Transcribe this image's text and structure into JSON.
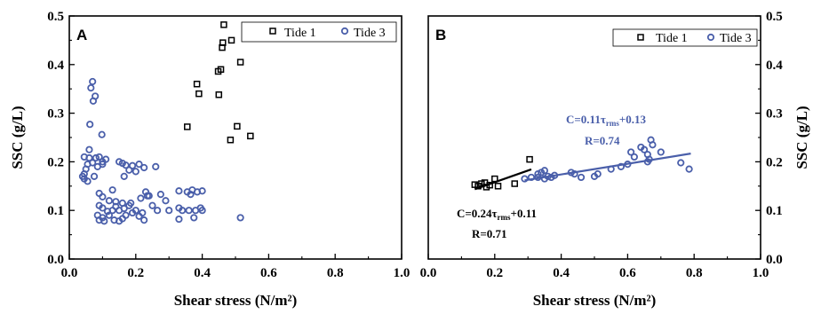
{
  "chart_data": [
    {
      "panel": "A",
      "type": "scatter",
      "xlabel": "Shear stress (N/m²)",
      "ylabel": "SSC (g/L)",
      "xlim": [
        0.0,
        1.0
      ],
      "ylim": [
        0.0,
        0.5
      ],
      "xticks": [
        "0.0",
        "0.2",
        "0.4",
        "0.6",
        "0.8",
        "1.0"
      ],
      "yticks": [
        "0.0",
        "0.1",
        "0.2",
        "0.3",
        "0.4",
        "0.5"
      ],
      "legend_position": "top-right",
      "series": [
        {
          "name": "Tide 1",
          "marker": "square",
          "color": "#000000",
          "points": [
            [
              0.465,
              0.482
            ],
            [
              0.488,
              0.45
            ],
            [
              0.462,
              0.445
            ],
            [
              0.46,
              0.435
            ],
            [
              0.456,
              0.39
            ],
            [
              0.448,
              0.386
            ],
            [
              0.515,
              0.405
            ],
            [
              0.384,
              0.36
            ],
            [
              0.39,
              0.34
            ],
            [
              0.45,
              0.338
            ],
            [
              0.355,
              0.272
            ],
            [
              0.505,
              0.273
            ],
            [
              0.545,
              0.253
            ],
            [
              0.485,
              0.245
            ]
          ]
        },
        {
          "name": "Tide 3",
          "marker": "circle",
          "color": "#4a5faa",
          "points": [
            [
              0.07,
              0.365
            ],
            [
              0.065,
              0.352
            ],
            [
              0.078,
              0.335
            ],
            [
              0.072,
              0.325
            ],
            [
              0.062,
              0.277
            ],
            [
              0.098,
              0.256
            ],
            [
              0.06,
              0.225
            ],
            [
              0.045,
              0.21
            ],
            [
              0.06,
              0.208
            ],
            [
              0.08,
              0.208
            ],
            [
              0.055,
              0.195
            ],
            [
              0.07,
              0.198
            ],
            [
              0.09,
              0.21
            ],
            [
              0.1,
              0.2
            ],
            [
              0.11,
              0.205
            ],
            [
              0.085,
              0.19
            ],
            [
              0.05,
              0.185
            ],
            [
              0.045,
              0.175
            ],
            [
              0.04,
              0.17
            ],
            [
              0.045,
              0.165
            ],
            [
              0.075,
              0.17
            ],
            [
              0.055,
              0.16
            ],
            [
              0.1,
              0.195
            ],
            [
              0.15,
              0.2
            ],
            [
              0.16,
              0.197
            ],
            [
              0.17,
              0.193
            ],
            [
              0.19,
              0.192
            ],
            [
              0.21,
              0.195
            ],
            [
              0.225,
              0.188
            ],
            [
              0.26,
              0.19
            ],
            [
              0.18,
              0.183
            ],
            [
              0.2,
              0.18
            ],
            [
              0.165,
              0.17
            ],
            [
              0.09,
              0.135
            ],
            [
              0.1,
              0.128
            ],
            [
              0.13,
              0.142
            ],
            [
              0.12,
              0.12
            ],
            [
              0.14,
              0.118
            ],
            [
              0.16,
              0.115
            ],
            [
              0.185,
              0.115
            ],
            [
              0.215,
              0.125
            ],
            [
              0.235,
              0.13
            ],
            [
              0.23,
              0.138
            ],
            [
              0.24,
              0.13
            ],
            [
              0.275,
              0.133
            ],
            [
              0.29,
              0.12
            ],
            [
              0.33,
              0.14
            ],
            [
              0.355,
              0.138
            ],
            [
              0.365,
              0.133
            ],
            [
              0.37,
              0.142
            ],
            [
              0.385,
              0.138
            ],
            [
              0.4,
              0.14
            ],
            [
              0.09,
              0.11
            ],
            [
              0.1,
              0.105
            ],
            [
              0.115,
              0.098
            ],
            [
              0.13,
              0.1
            ],
            [
              0.14,
              0.108
            ],
            [
              0.15,
              0.1
            ],
            [
              0.165,
              0.104
            ],
            [
              0.18,
              0.11
            ],
            [
              0.2,
              0.1
            ],
            [
              0.22,
              0.095
            ],
            [
              0.25,
              0.11
            ],
            [
              0.265,
              0.1
            ],
            [
              0.3,
              0.1
            ],
            [
              0.33,
              0.105
            ],
            [
              0.34,
              0.1
            ],
            [
              0.36,
              0.1
            ],
            [
              0.38,
              0.1
            ],
            [
              0.395,
              0.105
            ],
            [
              0.4,
              0.1
            ],
            [
              0.085,
              0.09
            ],
            [
              0.09,
              0.08
            ],
            [
              0.1,
              0.085
            ],
            [
              0.12,
              0.09
            ],
            [
              0.135,
              0.08
            ],
            [
              0.15,
              0.078
            ],
            [
              0.17,
              0.09
            ],
            [
              0.19,
              0.095
            ],
            [
              0.21,
              0.088
            ],
            [
              0.225,
              0.08
            ],
            [
              0.33,
              0.082
            ],
            [
              0.375,
              0.085
            ],
            [
              0.515,
              0.085
            ],
            [
              0.105,
              0.078
            ],
            [
              0.16,
              0.083
            ]
          ]
        }
      ]
    },
    {
      "panel": "B",
      "type": "scatter",
      "xlabel": "Shear stress (N/m²)",
      "ylabel": "SSC (g/L)",
      "xlim": [
        0.0,
        1.0
      ],
      "ylim": [
        0.0,
        0.5
      ],
      "xticks": [
        "0.0",
        "0.2",
        "0.4",
        "0.6",
        "0.8",
        "1.0"
      ],
      "yticks": [
        "0.0",
        "0.1",
        "0.2",
        "0.3",
        "0.4",
        "0.5"
      ],
      "legend_position": "top-right",
      "series": [
        {
          "name": "Tide 1",
          "marker": "square",
          "color": "#000000",
          "points": [
            [
              0.14,
              0.153
            ],
            [
              0.15,
              0.15
            ],
            [
              0.16,
              0.155
            ],
            [
              0.17,
              0.157
            ],
            [
              0.175,
              0.148
            ],
            [
              0.185,
              0.152
            ],
            [
              0.2,
              0.165
            ],
            [
              0.21,
              0.15
            ],
            [
              0.26,
              0.155
            ],
            [
              0.305,
              0.205
            ]
          ],
          "fit": {
            "x": [
              0.14,
              0.31
            ],
            "equation": "C=0.24τ",
            "equation_sub": "rms",
            "equation_tail": "+0.11",
            "r_text": "R=0.71",
            "slope": 0.24,
            "intercept": 0.11
          }
        },
        {
          "name": "Tide 3",
          "marker": "circle",
          "color": "#4a5faa",
          "points": [
            [
              0.29,
              0.165
            ],
            [
              0.31,
              0.168
            ],
            [
              0.33,
              0.175
            ],
            [
              0.34,
              0.178
            ],
            [
              0.35,
              0.165
            ],
            [
              0.36,
              0.17
            ],
            [
              0.37,
              0.168
            ],
            [
              0.38,
              0.172
            ],
            [
              0.33,
              0.168
            ],
            [
              0.35,
              0.182
            ],
            [
              0.43,
              0.178
            ],
            [
              0.44,
              0.175
            ],
            [
              0.46,
              0.168
            ],
            [
              0.5,
              0.17
            ],
            [
              0.51,
              0.175
            ],
            [
              0.55,
              0.185
            ],
            [
              0.58,
              0.19
            ],
            [
              0.6,
              0.195
            ],
            [
              0.61,
              0.22
            ],
            [
              0.62,
              0.21
            ],
            [
              0.64,
              0.23
            ],
            [
              0.65,
              0.225
            ],
            [
              0.66,
              0.215
            ],
            [
              0.66,
              0.2
            ],
            [
              0.665,
              0.205
            ],
            [
              0.67,
              0.245
            ],
            [
              0.675,
              0.235
            ],
            [
              0.7,
              0.22
            ],
            [
              0.76,
              0.198
            ],
            [
              0.785,
              0.185
            ]
          ],
          "fit": {
            "x": [
              0.29,
              0.79
            ],
            "equation": "C=0.11τ",
            "equation_sub": "rms",
            "equation_tail": "+0.13",
            "r_text": "R=0.74",
            "slope": 0.11,
            "intercept": 0.13
          }
        }
      ]
    }
  ]
}
